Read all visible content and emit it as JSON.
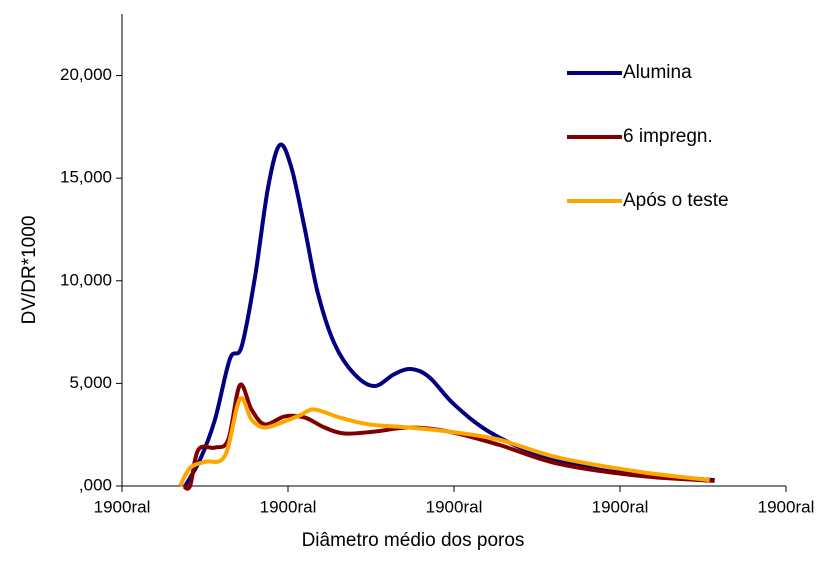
{
  "chart_data": {
    "type": "line",
    "x_label": "Diâmetro médio dos poros",
    "y_label": "DV/DR*1000",
    "xlim": [
      0,
      4
    ],
    "xticks": [
      {
        "value": 0,
        "label": "1900ral"
      },
      {
        "value": 1,
        "label": "1900ral"
      },
      {
        "value": 2,
        "label": "1900ral"
      },
      {
        "value": 3,
        "label": "1900ral"
      },
      {
        "value": 4,
        "label": "1900ral"
      }
    ],
    "ylim": [
      0,
      23000
    ],
    "yticks": [
      {
        "value": 0,
        "label": ",000"
      },
      {
        "value": 5000,
        "label": "5,000"
      },
      {
        "value": 10000,
        "label": "10,000"
      },
      {
        "value": 15000,
        "label": "15,000"
      },
      {
        "value": 20000,
        "label": "20,000"
      }
    ],
    "grid": false,
    "legend": "top-right",
    "series": [
      {
        "name": "Alumina",
        "color": "#000080",
        "x": [
          0.38,
          0.47,
          0.56,
          0.65,
          0.72,
          0.8,
          0.88,
          0.95,
          1.02,
          1.1,
          1.18,
          1.28,
          1.4,
          1.52,
          1.64,
          1.74,
          1.85,
          2.0,
          2.21,
          2.51,
          2.88,
          3.24,
          3.57
        ],
        "values": [
          0,
          1280,
          3240,
          6190,
          6780,
          10120,
          14550,
          16610,
          15530,
          12580,
          9390,
          6930,
          5450,
          4870,
          5450,
          5700,
          5310,
          3980,
          2650,
          1520,
          790,
          490,
          290
        ]
      },
      {
        "name": "6 impregn.",
        "color": "#800000",
        "x": [
          0.37,
          0.41,
          0.46,
          0.56,
          0.64,
          0.71,
          0.78,
          0.86,
          0.98,
          1.1,
          1.22,
          1.34,
          1.52,
          1.73,
          1.97,
          2.27,
          2.63,
          3.12,
          3.57
        ],
        "values": [
          0,
          0,
          1770,
          1870,
          2260,
          4910,
          3730,
          3000,
          3390,
          3340,
          2850,
          2560,
          2650,
          2850,
          2650,
          2010,
          1080,
          490,
          250
        ]
      },
      {
        "name": "Após o teste",
        "color": "#ffa500",
        "x": [
          0.35,
          0.41,
          0.5,
          0.62,
          0.71,
          0.78,
          0.86,
          0.98,
          1.07,
          1.16,
          1.31,
          1.49,
          1.73,
          1.97,
          2.27,
          2.63,
          3.12,
          3.54
        ],
        "values": [
          0,
          880,
          1180,
          1470,
          4230,
          3240,
          2850,
          3150,
          3440,
          3730,
          3340,
          3000,
          2850,
          2650,
          2260,
          1380,
          690,
          290
        ]
      }
    ]
  }
}
